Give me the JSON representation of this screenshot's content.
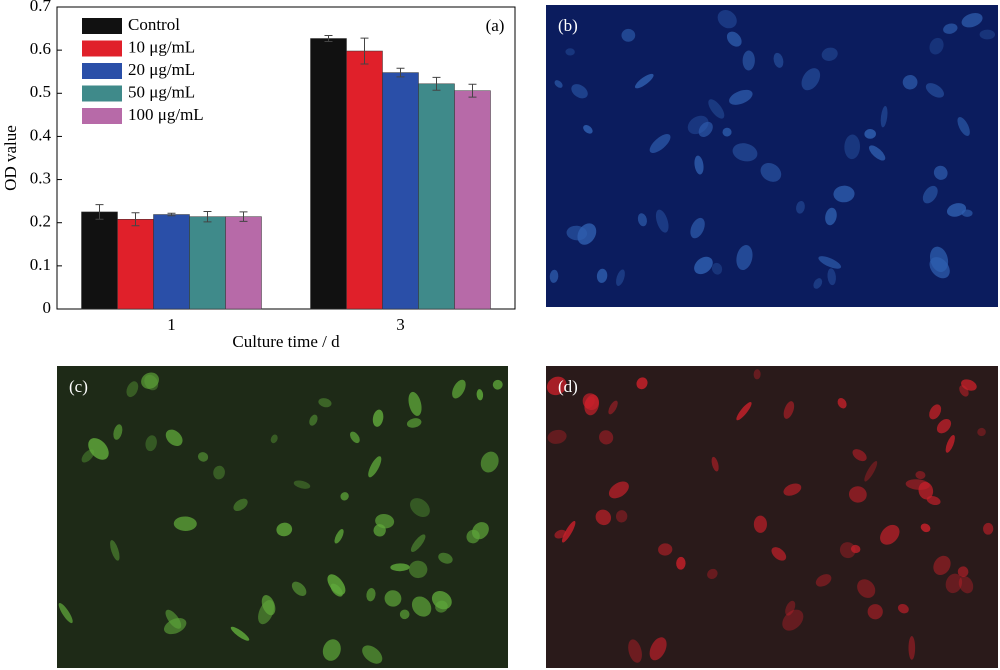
{
  "chart_data": {
    "type": "bar",
    "panel_label": "(a)",
    "ylabel": "OD value",
    "xlabel": "Culture time / d",
    "categories": [
      "1",
      "3"
    ],
    "series": [
      {
        "name": "Control",
        "color": "#111111",
        "values": [
          0.225,
          0.627
        ],
        "errors": [
          0.017,
          0.007
        ]
      },
      {
        "name": "10 μg/mL",
        "color": "#e0202a",
        "values": [
          0.208,
          0.598
        ],
        "errors": [
          0.015,
          0.03
        ]
      },
      {
        "name": "20 μg/mL",
        "color": "#2a4fa8",
        "values": [
          0.219,
          0.548
        ],
        "errors": [
          0.003,
          0.01
        ]
      },
      {
        "name": "50 μg/mL",
        "color": "#3f8a8a",
        "values": [
          0.214,
          0.522
        ],
        "errors": [
          0.012,
          0.015
        ]
      },
      {
        "name": "100 μg/mL",
        "color": "#b76aa8",
        "values": [
          0.214,
          0.506
        ],
        "errors": [
          0.011,
          0.015
        ]
      }
    ],
    "ylim": [
      0,
      0.7
    ],
    "yticks": [
      0,
      0.1,
      0.2,
      0.3,
      0.4,
      0.5,
      0.6,
      0.7
    ],
    "legend": "upper left"
  },
  "panels": [
    {
      "label": "(b)",
      "color": "#0b1c5e",
      "cell": "#2f5fb0"
    },
    {
      "label": "(c)",
      "color": "#1e2a17",
      "cell": "#5fa83a"
    },
    {
      "label": "(d)",
      "color": "#2a1a1a",
      "cell": "#c8202a"
    }
  ]
}
